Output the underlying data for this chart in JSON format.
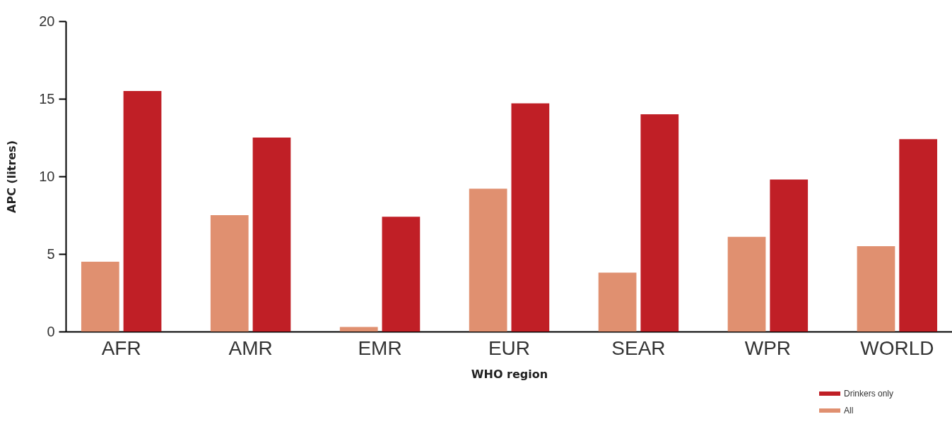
{
  "chart_data": {
    "type": "bar",
    "xlabel": "WHO region",
    "ylabel": "APC (litres)",
    "categories": [
      "AFR",
      "AMR",
      "EMR",
      "EUR",
      "SEAR",
      "WPR",
      "WORLD"
    ],
    "series": [
      {
        "name": "All",
        "color": "#e09070",
        "values": [
          4.5,
          7.5,
          0.3,
          9.2,
          3.8,
          6.1,
          5.5
        ]
      },
      {
        "name": "Drinkers only",
        "color": "#c01f26",
        "values": [
          15.5,
          12.5,
          7.4,
          14.7,
          14.0,
          9.8,
          12.4
        ]
      }
    ],
    "ylim": [
      0,
      20
    ],
    "yticks": [
      0,
      5,
      10,
      15,
      20
    ],
    "grid": false,
    "legend": "bottom right"
  }
}
